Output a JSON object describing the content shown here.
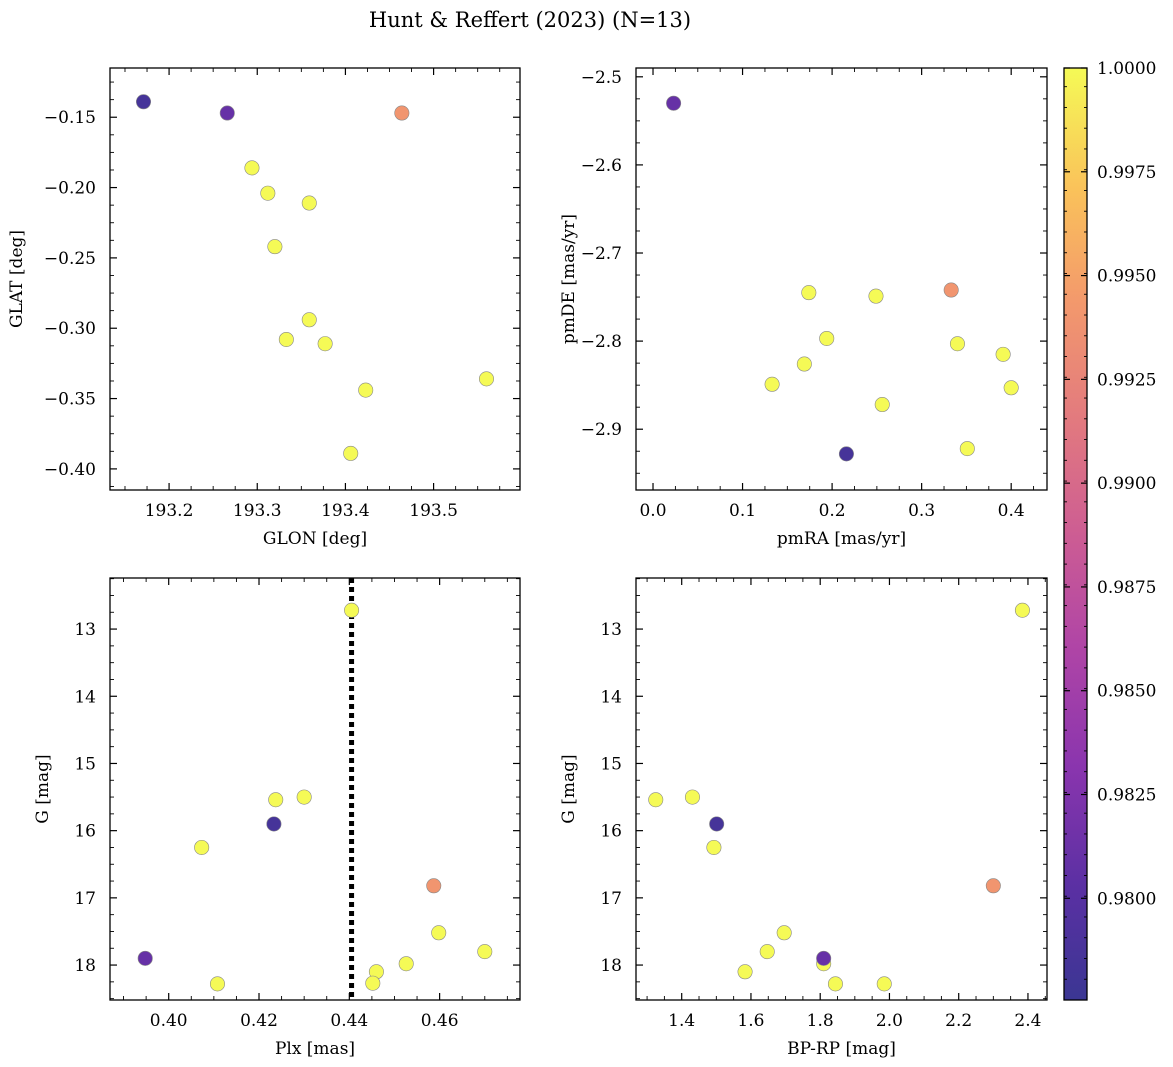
{
  "chart_data": {
    "title": "Hunt & Reffert (2023) (N=13)",
    "type": "scatter",
    "colorbar": {
      "colormap": "plasma",
      "range": [
        0.97755,
        1.0
      ],
      "ticks": [
        0.98,
        0.9825,
        0.985,
        0.9875,
        0.99,
        0.9925,
        0.995,
        0.9975,
        1.0
      ],
      "tick_labels": [
        "0.9800",
        "0.9825",
        "0.9850",
        "0.9875",
        "0.9900",
        "0.9925",
        "0.9950",
        "0.9975",
        "1.0000"
      ]
    },
    "panels": [
      {
        "id": "glon-glat",
        "xlabel": "GLON [deg]",
        "ylabel": "GLAT [deg]",
        "xlim": [
          193.133,
          193.598
        ],
        "ylim": [
          -0.415,
          -0.115
        ],
        "xticks": [
          193.2,
          193.3,
          193.4,
          193.5
        ],
        "xtick_labels": [
          "193.2",
          "193.3",
          "193.4",
          "193.5"
        ],
        "yticks": [
          -0.15,
          -0.2,
          -0.25,
          -0.3,
          -0.35,
          -0.4
        ],
        "ytick_labels": [
          "−0.15",
          "−0.20",
          "−0.25",
          "−0.30",
          "−0.35",
          "−0.40"
        ],
        "points": [
          {
            "x": 193.171,
            "y": -0.139,
            "c": 0.9785
          },
          {
            "x": 193.266,
            "y": -0.147,
            "c": 0.981
          },
          {
            "x": 193.464,
            "y": -0.147,
            "c": 0.994
          },
          {
            "x": 193.294,
            "y": -0.186,
            "c": 1.0
          },
          {
            "x": 193.312,
            "y": -0.204,
            "c": 1.0
          },
          {
            "x": 193.359,
            "y": -0.211,
            "c": 1.0
          },
          {
            "x": 193.32,
            "y": -0.242,
            "c": 1.0
          },
          {
            "x": 193.359,
            "y": -0.294,
            "c": 1.0
          },
          {
            "x": 193.333,
            "y": -0.308,
            "c": 1.0
          },
          {
            "x": 193.377,
            "y": -0.311,
            "c": 1.0
          },
          {
            "x": 193.423,
            "y": -0.344,
            "c": 1.0
          },
          {
            "x": 193.56,
            "y": -0.336,
            "c": 1.0
          },
          {
            "x": 193.406,
            "y": -0.389,
            "c": 1.0
          }
        ]
      },
      {
        "id": "pmra-pmde",
        "xlabel": "pmRA [mas/yr]",
        "ylabel": "pmDE [mas/yr]",
        "xlim": [
          -0.019,
          0.44
        ],
        "ylim": [
          -2.969,
          -2.49
        ],
        "xticks": [
          0.0,
          0.1,
          0.2,
          0.3,
          0.4
        ],
        "xtick_labels": [
          "0.0",
          "0.1",
          "0.2",
          "0.3",
          "0.4"
        ],
        "yticks": [
          -2.5,
          -2.6,
          -2.7,
          -2.8,
          -2.9
        ],
        "ytick_labels": [
          "−2.5",
          "−2.6",
          "−2.7",
          "−2.8",
          "−2.9"
        ],
        "points": [
          {
            "x": 0.023,
            "y": -2.53,
            "c": 0.981
          },
          {
            "x": 0.174,
            "y": -2.745,
            "c": 1.0
          },
          {
            "x": 0.249,
            "y": -2.749,
            "c": 1.0
          },
          {
            "x": 0.333,
            "y": -2.742,
            "c": 0.994
          },
          {
            "x": 0.194,
            "y": -2.797,
            "c": 1.0
          },
          {
            "x": 0.34,
            "y": -2.803,
            "c": 1.0
          },
          {
            "x": 0.391,
            "y": -2.815,
            "c": 1.0
          },
          {
            "x": 0.169,
            "y": -2.826,
            "c": 1.0
          },
          {
            "x": 0.133,
            "y": -2.849,
            "c": 1.0
          },
          {
            "x": 0.4,
            "y": -2.853,
            "c": 1.0
          },
          {
            "x": 0.256,
            "y": -2.872,
            "c": 1.0
          },
          {
            "x": 0.351,
            "y": -2.922,
            "c": 1.0
          },
          {
            "x": 0.216,
            "y": -2.928,
            "c": 0.9785
          }
        ]
      },
      {
        "id": "plx-g",
        "xlabel": "Plx [mas]",
        "ylabel": "G [mag]",
        "xlim": [
          0.387,
          0.4778
        ],
        "ylim": [
          18.52,
          12.24
        ],
        "invert_y": true,
        "vline": {
          "x": 0.4405,
          "style": "dotted"
        },
        "xticks": [
          0.4,
          0.42,
          0.44,
          0.46
        ],
        "xtick_labels": [
          "0.40",
          "0.42",
          "0.44",
          "0.46"
        ],
        "yticks": [
          13,
          14,
          15,
          16,
          17,
          18
        ],
        "ytick_labels": [
          "13",
          "14",
          "15",
          "16",
          "17",
          "18"
        ],
        "points": [
          {
            "x": 0.4405,
            "y": 12.72,
            "c": 1.0
          },
          {
            "x": 0.43,
            "y": 15.5,
            "c": 1.0
          },
          {
            "x": 0.4237,
            "y": 15.54,
            "c": 1.0
          },
          {
            "x": 0.4233,
            "y": 15.9,
            "c": 0.9785
          },
          {
            "x": 0.4073,
            "y": 16.25,
            "c": 1.0
          },
          {
            "x": 0.4587,
            "y": 16.82,
            "c": 0.994
          },
          {
            "x": 0.4598,
            "y": 17.52,
            "c": 1.0
          },
          {
            "x": 0.47,
            "y": 17.8,
            "c": 1.0
          },
          {
            "x": 0.3948,
            "y": 17.9,
            "c": 0.981
          },
          {
            "x": 0.4526,
            "y": 17.98,
            "c": 1.0
          },
          {
            "x": 0.446,
            "y": 18.1,
            "c": 1.0
          },
          {
            "x": 0.4452,
            "y": 18.27,
            "c": 1.0
          },
          {
            "x": 0.4108,
            "y": 18.28,
            "c": 1.0
          }
        ]
      },
      {
        "id": "bprp-g",
        "xlabel": "BP-RP [mag]",
        "ylabel": "G [mag]",
        "xlim": [
          1.268,
          2.455
        ],
        "ylim": [
          18.52,
          12.24
        ],
        "invert_y": true,
        "xticks": [
          1.4,
          1.6,
          1.8,
          2.0,
          2.2,
          2.4
        ],
        "xtick_labels": [
          "1.4",
          "1.6",
          "1.8",
          "2.0",
          "2.2",
          "2.4"
        ],
        "yticks": [
          13,
          14,
          15,
          16,
          17,
          18
        ],
        "ytick_labels": [
          "13",
          "14",
          "15",
          "16",
          "17",
          "18"
        ],
        "points": [
          {
            "x": 2.384,
            "y": 12.72,
            "c": 1.0
          },
          {
            "x": 1.325,
            "y": 15.54,
            "c": 1.0
          },
          {
            "x": 1.431,
            "y": 15.5,
            "c": 1.0
          },
          {
            "x": 1.501,
            "y": 15.9,
            "c": 0.9785
          },
          {
            "x": 1.493,
            "y": 16.25,
            "c": 1.0
          },
          {
            "x": 2.3,
            "y": 16.82,
            "c": 0.994
          },
          {
            "x": 1.696,
            "y": 17.52,
            "c": 1.0
          },
          {
            "x": 1.647,
            "y": 17.8,
            "c": 1.0
          },
          {
            "x": 1.81,
            "y": 17.9,
            "c": 0.981
          },
          {
            "x": 1.81,
            "y": 17.98,
            "c": 1.0
          },
          {
            "x": 1.583,
            "y": 18.1,
            "c": 1.0
          },
          {
            "x": 1.844,
            "y": 18.28,
            "c": 1.0
          },
          {
            "x": 1.985,
            "y": 18.28,
            "c": 1.0
          }
        ]
      }
    ]
  }
}
